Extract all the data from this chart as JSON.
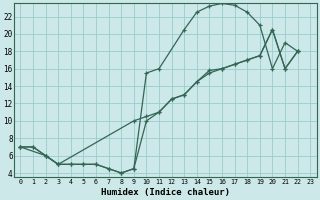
{
  "xlabel": "Humidex (Indice chaleur)",
  "bg_color": "#cce8e8",
  "grid_color": "#99cccc",
  "line_color": "#336655",
  "xlim": [
    -0.5,
    23.5
  ],
  "ylim": [
    3.5,
    23.5
  ],
  "xticks": [
    0,
    1,
    2,
    3,
    4,
    5,
    6,
    7,
    8,
    9,
    10,
    11,
    12,
    13,
    14,
    15,
    16,
    17,
    18,
    19,
    20,
    21,
    22,
    23
  ],
  "yticks": [
    4,
    6,
    8,
    10,
    12,
    14,
    16,
    18,
    20,
    22
  ],
  "line1_x": [
    0,
    1,
    2,
    3,
    4,
    5,
    6,
    7,
    8,
    9,
    10,
    11,
    13,
    14,
    15,
    16,
    17,
    18,
    19,
    20,
    21,
    22
  ],
  "line1_y": [
    7,
    7,
    6,
    5,
    5,
    5,
    5,
    4.5,
    4,
    4.5,
    15.5,
    16,
    20.5,
    22.5,
    23.2,
    23.5,
    23.3,
    22.5,
    21,
    16,
    19,
    18
  ],
  "line2_x": [
    0,
    1,
    2,
    3,
    4,
    5,
    6,
    7,
    8,
    9,
    10,
    11,
    12,
    13,
    14,
    15,
    16,
    17,
    18,
    19,
    20,
    21,
    22
  ],
  "line2_y": [
    7,
    7,
    6,
    5,
    5,
    5,
    5,
    4.5,
    4,
    4.5,
    10,
    11,
    12.5,
    13,
    14.5,
    15.8,
    16,
    16.5,
    17,
    17.5,
    20.5,
    16,
    18
  ],
  "line3_x": [
    0,
    2,
    3,
    9,
    10,
    11,
    12,
    13,
    14,
    15,
    16,
    17,
    18,
    19,
    20,
    21,
    22
  ],
  "line3_y": [
    7,
    6,
    5,
    10,
    10.5,
    11,
    12.5,
    13,
    14.5,
    15.5,
    16,
    16.5,
    17,
    17.5,
    20.5,
    16,
    18
  ]
}
